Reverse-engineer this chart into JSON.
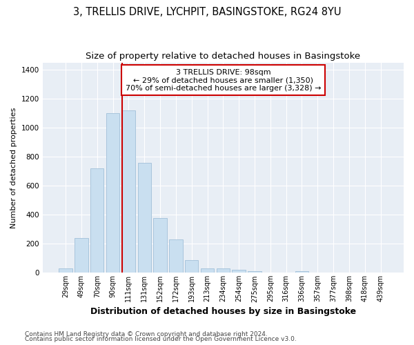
{
  "title1": "3, TRELLIS DRIVE, LYCHPIT, BASINGSTOKE, RG24 8YU",
  "title2": "Size of property relative to detached houses in Basingstoke",
  "xlabel": "Distribution of detached houses by size in Basingstoke",
  "ylabel": "Number of detached properties",
  "categories": [
    "29sqm",
    "49sqm",
    "70sqm",
    "90sqm",
    "111sqm",
    "131sqm",
    "152sqm",
    "172sqm",
    "193sqm",
    "213sqm",
    "234sqm",
    "254sqm",
    "275sqm",
    "295sqm",
    "316sqm",
    "336sqm",
    "357sqm",
    "377sqm",
    "398sqm",
    "418sqm",
    "439sqm"
  ],
  "values": [
    29,
    238,
    720,
    1100,
    1120,
    760,
    375,
    228,
    88,
    30,
    28,
    20,
    12,
    0,
    0,
    10,
    0,
    0,
    0,
    0,
    0
  ],
  "bar_color": "#c9dff0",
  "bar_edge_color": "#a0bfd8",
  "ref_line_x": 3.5,
  "ref_line_label": "3 TRELLIS DRIVE: 98sqm",
  "annotation_line1": "← 29% of detached houses are smaller (1,350)",
  "annotation_line2": "70% of semi-detached houses are larger (3,328) →",
  "annotation_box_facecolor": "#ffffff",
  "annotation_box_edgecolor": "#cc0000",
  "ref_line_color": "#cc0000",
  "ylim": [
    0,
    1450
  ],
  "yticks": [
    0,
    200,
    400,
    600,
    800,
    1000,
    1200,
    1400
  ],
  "footnote1": "Contains HM Land Registry data © Crown copyright and database right 2024.",
  "footnote2": "Contains public sector information licensed under the Open Government Licence v3.0.",
  "fig_bg_color": "#ffffff",
  "plot_bg_color": "#e8eef5",
  "grid_color": "#ffffff",
  "title1_fontsize": 10.5,
  "title2_fontsize": 9.5,
  "xlabel_fontsize": 9,
  "ylabel_fontsize": 8,
  "tick_fontsize": 7.5,
  "xtick_fontsize": 7,
  "annot_fontsize": 8,
  "footnote_fontsize": 6.5
}
